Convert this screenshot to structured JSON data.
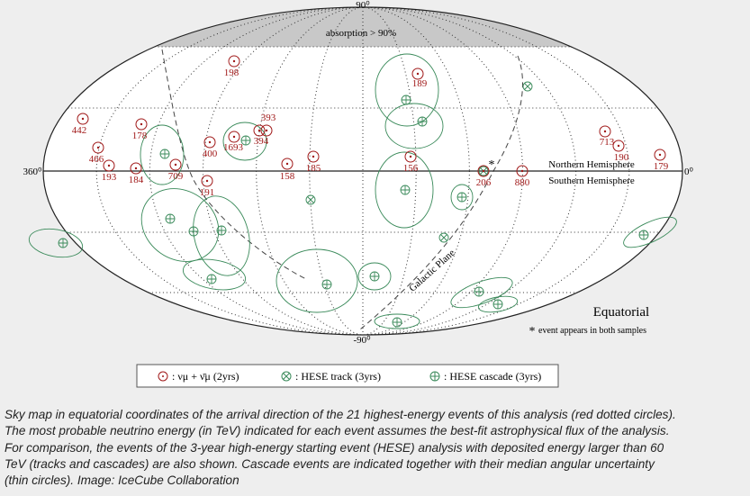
{
  "map": {
    "title": "Equatorial",
    "pole_north": "90⁰",
    "pole_south": "-90⁰",
    "ra_left": "360⁰",
    "ra_right": "0⁰",
    "absorption": "absorption > 90%",
    "north": "Northern Hemisphere",
    "south": "Southern Hemisphere",
    "galactic": "Galactic Plane",
    "footnote_star": "*",
    "footnote": "event appears in both samples",
    "events": [
      "442",
      "466",
      "193",
      "178",
      "184",
      "709",
      "191",
      "400",
      "198",
      "1693",
      "393",
      "394",
      "158",
      "185",
      "189",
      "156",
      "206",
      "880",
      "713",
      "190",
      "179"
    ]
  },
  "legend": {
    "items": [
      ": νμ + ν̄μ (2yrs)",
      ": HESE track (3yrs)",
      ": HESE cascade (3yrs)"
    ]
  },
  "caption": {
    "lines": [
      "Sky map in equatorial coordinates of the arrival direction of the 21 highest-energy events of this analysis (red dotted circles).",
      "The most probable neutrino energy (in TeV) indicated for each event assumes the best-fit astrophysical flux of the analysis.",
      "For comparison, the events of the 3-year high-energy starting event (HESE) analysis with deposited energy larger than 60",
      "TeV (tracks and cascades) are also shown. Cascade events are indicated together with their median angular uncertainty",
      "(thin circles). Image: IceCube Collaboration"
    ]
  }
}
